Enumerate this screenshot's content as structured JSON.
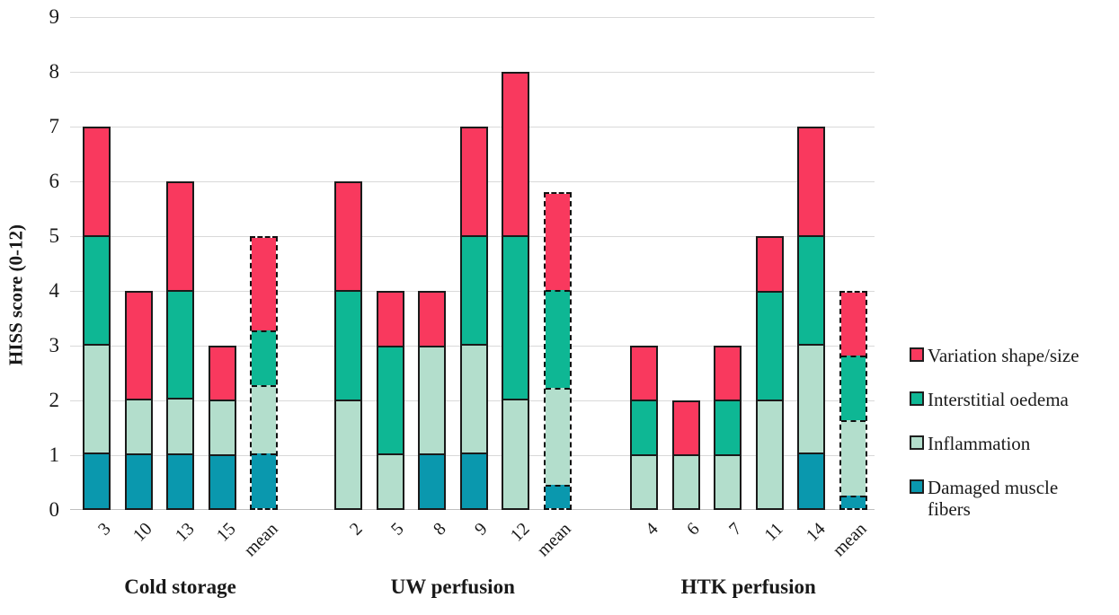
{
  "chart_data": {
    "type": "bar",
    "stacked": true,
    "title": "",
    "xlabel": "",
    "ylabel": "HISS score (0-12)",
    "ylim": [
      0,
      9
    ],
    "yticks": [
      0,
      1,
      2,
      3,
      4,
      5,
      6,
      7,
      8,
      9
    ],
    "grid": true,
    "legend_position": "right",
    "stack_order_bottom_to_top": [
      "damaged",
      "inflammation",
      "oedema",
      "variation"
    ],
    "colors": {
      "variation": "#F9395E",
      "oedema": "#0EB794",
      "inflammation": "#B3DECC",
      "damaged": "#0A98AE",
      "gridline": "#D9D9D9",
      "bar_outline": "#1A1A1A"
    },
    "legend": [
      {
        "id": "variation",
        "label": "Variation shape/size",
        "color": "#F9395E"
      },
      {
        "id": "oedema",
        "label": "Interstitial oedema",
        "color": "#0EB794"
      },
      {
        "id": "inflammation",
        "label": "Inflammation",
        "color": "#B3DECC"
      },
      {
        "id": "damaged",
        "label": "Damaged muscle fibers",
        "color": "#0A98AE"
      }
    ],
    "groups": [
      {
        "label": "Cold storage",
        "bars": [
          {
            "label": "3",
            "style": "solid",
            "damaged": 1,
            "inflammation": 2,
            "oedema": 2,
            "variation": 2,
            "total": 7
          },
          {
            "label": "10",
            "style": "solid",
            "damaged": 1,
            "inflammation": 1,
            "oedema": 0,
            "variation": 2,
            "total": 4
          },
          {
            "label": "13",
            "style": "solid",
            "damaged": 1,
            "inflammation": 1,
            "oedema": 2,
            "variation": 2,
            "total": 6
          },
          {
            "label": "15",
            "style": "solid",
            "damaged": 1,
            "inflammation": 1,
            "oedema": 0,
            "variation": 1,
            "total": 3
          },
          {
            "label": "mean",
            "style": "dashed",
            "damaged": 1,
            "inflammation": 1.25,
            "oedema": 1,
            "variation": 1.75,
            "total": 5
          }
        ]
      },
      {
        "label": "UW perfusion",
        "bars": [
          {
            "label": "2",
            "style": "solid",
            "damaged": 0,
            "inflammation": 2,
            "oedema": 2,
            "variation": 2,
            "total": 6
          },
          {
            "label": "5",
            "style": "solid",
            "damaged": 0,
            "inflammation": 1,
            "oedema": 2,
            "variation": 1,
            "total": 4
          },
          {
            "label": "8",
            "style": "solid",
            "damaged": 1,
            "inflammation": 2,
            "oedema": 0,
            "variation": 1,
            "total": 4
          },
          {
            "label": "9",
            "style": "solid",
            "damaged": 1,
            "inflammation": 2,
            "oedema": 2,
            "variation": 2,
            "total": 7
          },
          {
            "label": "12",
            "style": "solid",
            "damaged": 0,
            "inflammation": 2,
            "oedema": 3,
            "variation": 3,
            "total": 8
          },
          {
            "label": "mean",
            "style": "dashed",
            "damaged": 0.4,
            "inflammation": 1.8,
            "oedema": 1.8,
            "variation": 1.8,
            "total": 5.8
          }
        ]
      },
      {
        "label": "HTK perfusion",
        "bars": [
          {
            "label": "4",
            "style": "solid",
            "damaged": 0,
            "inflammation": 1,
            "oedema": 1,
            "variation": 1,
            "total": 3
          },
          {
            "label": "6",
            "style": "solid",
            "damaged": 0,
            "inflammation": 1,
            "oedema": 0,
            "variation": 1,
            "total": 2
          },
          {
            "label": "7",
            "style": "solid",
            "damaged": 0,
            "inflammation": 1,
            "oedema": 1,
            "variation": 1,
            "total": 3
          },
          {
            "label": "11",
            "style": "solid",
            "damaged": 0,
            "inflammation": 2,
            "oedema": 2,
            "variation": 1,
            "total": 5
          },
          {
            "label": "14",
            "style": "solid",
            "damaged": 1,
            "inflammation": 2,
            "oedema": 2,
            "variation": 2,
            "total": 7
          },
          {
            "label": "mean",
            "style": "dashed",
            "damaged": 0.2,
            "inflammation": 1.4,
            "oedema": 1.2,
            "variation": 1.2,
            "total": 4
          }
        ]
      }
    ]
  }
}
